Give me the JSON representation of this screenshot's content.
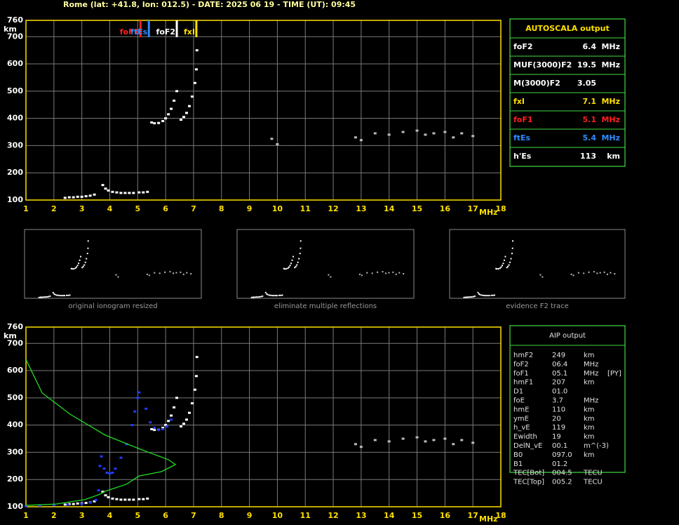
{
  "header": {
    "title": "Rome (lat: +41.8, lon: 012.5) - DATE: 2025 06 19 - TIME (UT): 09:45"
  },
  "chart_data": [
    {
      "type": "scatter",
      "x_label": "MHz",
      "y_label": "km",
      "xlim": [
        1,
        18
      ],
      "ylim": [
        100,
        760
      ],
      "xticks": [
        1,
        2,
        3,
        4,
        5,
        6,
        7,
        8,
        9,
        10,
        11,
        12,
        13,
        14,
        15,
        16,
        17,
        18
      ],
      "yticks": [
        100,
        200,
        300,
        400,
        500,
        600,
        700,
        760
      ],
      "grid": true,
      "annotations": [
        {
          "text": "foF1",
          "x": 5.1,
          "color": "#ff2020"
        },
        {
          "text": "ftEs",
          "x": 5.4,
          "color": "#2f8cff"
        },
        {
          "text": "foF2",
          "x": 6.4,
          "color": "#ffffff"
        },
        {
          "text": "fxI",
          "x": 7.1,
          "color": "#ffe000"
        }
      ],
      "series": [
        {
          "color": "#ffffff",
          "x": [
            2.4,
            2.55,
            2.7,
            2.85,
            3.0,
            3.15,
            3.3,
            3.45
          ],
          "y": [
            108,
            110,
            110,
            112,
            112,
            114,
            116,
            120
          ]
        },
        {
          "color": "#ffffff",
          "x": [
            3.75,
            3.85,
            3.95,
            4.1,
            4.25,
            4.4,
            4.55,
            4.7,
            4.85,
            5.05,
            5.2,
            5.35
          ],
          "y": [
            155,
            142,
            135,
            130,
            128,
            126,
            126,
            126,
            126,
            128,
            128,
            130
          ]
        },
        {
          "color": "#ffffff",
          "x": [
            5.5,
            5.6,
            5.75,
            5.9,
            6.0,
            6.1,
            6.2,
            6.3,
            6.4
          ],
          "y": [
            385,
            382,
            383,
            390,
            400,
            415,
            435,
            465,
            500
          ]
        },
        {
          "color": "#ffffff",
          "x": [
            6.55,
            6.65,
            6.75,
            6.85,
            6.95,
            7.05,
            7.1,
            7.12
          ],
          "y": [
            395,
            405,
            420,
            445,
            480,
            530,
            580,
            650
          ]
        },
        {
          "color": "#bbbbbb",
          "x": [
            9.8,
            10.0,
            12.8,
            13.0,
            13.5,
            14.0,
            14.5,
            15.0,
            15.3,
            15.6,
            16.0,
            16.3,
            16.6,
            17.0
          ],
          "y": [
            325,
            305,
            330,
            320,
            345,
            340,
            350,
            355,
            340,
            345,
            350,
            330,
            345,
            335
          ]
        }
      ]
    },
    {
      "type": "scatter",
      "x_label": "MHz",
      "y_label": "km",
      "xlim": [
        1,
        18
      ],
      "ylim": [
        100,
        760
      ],
      "xticks": [
        1,
        2,
        3,
        4,
        5,
        6,
        7,
        8,
        9,
        10,
        11,
        12,
        13,
        14,
        15,
        16,
        17,
        18
      ],
      "yticks": [
        100,
        200,
        300,
        400,
        500,
        600,
        700,
        760
      ],
      "grid": true,
      "series": [
        {
          "color": "#ffffff",
          "x": [
            2.4,
            2.55,
            2.7,
            2.85,
            3.0,
            3.15,
            3.3,
            3.45
          ],
          "y": [
            108,
            110,
            110,
            112,
            112,
            114,
            116,
            120
          ]
        },
        {
          "color": "#ffffff",
          "x": [
            3.75,
            3.85,
            3.95,
            4.1,
            4.25,
            4.4,
            4.55,
            4.7,
            4.85,
            5.05,
            5.2,
            5.35
          ],
          "y": [
            155,
            142,
            135,
            130,
            128,
            126,
            126,
            126,
            126,
            128,
            128,
            130
          ]
        },
        {
          "color": "#ffffff",
          "x": [
            5.5,
            5.6,
            5.75,
            5.9,
            6.0,
            6.1,
            6.2,
            6.3,
            6.4
          ],
          "y": [
            385,
            382,
            383,
            390,
            400,
            415,
            435,
            465,
            500
          ]
        },
        {
          "color": "#ffffff",
          "x": [
            6.55,
            6.65,
            6.75,
            6.85,
            6.95,
            7.05,
            7.1,
            7.12
          ],
          "y": [
            395,
            405,
            420,
            445,
            480,
            530,
            580,
            650
          ]
        },
        {
          "color": "#bbbbbb",
          "x": [
            12.8,
            13.0,
            13.5,
            14.0,
            14.5,
            15.0,
            15.3,
            15.6,
            16.0,
            16.3,
            16.6,
            17.0
          ],
          "y": [
            330,
            320,
            345,
            340,
            350,
            355,
            340,
            345,
            350,
            330,
            345,
            335
          ]
        },
        {
          "color": "#1f3cff",
          "x": [
            1,
            1.5,
            2,
            2.5,
            3,
            3.3,
            3.5,
            3.6,
            3.65,
            3.7,
            3.8,
            3.9,
            4.0,
            4.1,
            4.2,
            4.4,
            4.6,
            4.8,
            4.9,
            5.0,
            5.05
          ],
          "y": [
            102,
            104,
            106,
            108,
            110,
            115,
            125,
            160,
            250,
            285,
            240,
            225,
            222,
            225,
            240,
            280,
            330,
            400,
            450,
            500,
            520
          ]
        },
        {
          "color": "#1f3cff",
          "x": [
            5.3,
            5.45,
            5.6,
            5.75,
            5.9,
            6.05,
            6.2
          ],
          "y": [
            460,
            410,
            390,
            382,
            385,
            395,
            420
          ]
        },
        {
          "color": "#22dd22",
          "style": "line",
          "x": [
            1,
            1.58,
            2.58,
            3.84,
            5.1,
            6.1,
            6.35,
            5.85,
            5.05,
            4.6,
            3.84,
            3.6,
            3.1,
            2.08,
            1
          ],
          "y": [
            641,
            518,
            440,
            363,
            311,
            273,
            255,
            229,
            213,
            183,
            157,
            144,
            126,
            110,
            105
          ]
        }
      ]
    }
  ],
  "thumbnails": [
    {
      "caption": "original ionogram resized"
    },
    {
      "caption": "eliminate multiple reflections"
    },
    {
      "caption": "evidence F2 trace"
    }
  ],
  "autoscala": {
    "title": "AUTOSCALA output",
    "rows": [
      {
        "color": "#ffffff",
        "cells": [
          "foF2",
          "6.4",
          "MHz"
        ]
      },
      {
        "color": "#ffffff",
        "cells": [
          "MUF(3000)F2",
          "19.5",
          "MHz"
        ]
      },
      {
        "color": "#ffffff",
        "cells": [
          "M(3000)F2",
          "3.05"
        ]
      },
      {
        "color": "#ffe000",
        "cells": [
          "fxI",
          "7.1",
          "MHz"
        ]
      },
      {
        "color": "#ff2020",
        "cells": [
          "foF1",
          "5.1",
          "MHz"
        ]
      },
      {
        "color": "#2f8cff",
        "cells": [
          "ftEs",
          "5.4",
          "MHz"
        ]
      },
      {
        "color": "#ffffff",
        "cells": [
          "h'Es",
          "113",
          "km"
        ]
      }
    ]
  },
  "aip": {
    "title": "AIP output",
    "rows": [
      [
        "hmF2",
        "249",
        "km"
      ],
      [
        "foF2",
        "06.4",
        "MHz"
      ],
      [
        "foF1",
        "05.1",
        "MHz",
        "[PY]"
      ],
      [
        "hmF1",
        "207",
        "km"
      ],
      [
        "D1",
        "01.0"
      ],
      [
        "foE",
        "3.7",
        "MHz"
      ],
      [
        "hmE",
        "110",
        "km"
      ],
      [
        "ymE",
        "20",
        "km"
      ],
      [
        "h_vE",
        "119",
        "km"
      ],
      [
        "Ewidth",
        "19",
        "km"
      ],
      [
        "DelN_vE",
        "00.1",
        "m^(-3)"
      ],
      [
        "B0",
        "097.0",
        "km"
      ],
      [
        "B1",
        "01.2"
      ],
      [
        "TEC[Bot]",
        "004.5",
        "TECU"
      ],
      [
        "TEC[Top]",
        "005.2",
        "TECU"
      ]
    ]
  }
}
